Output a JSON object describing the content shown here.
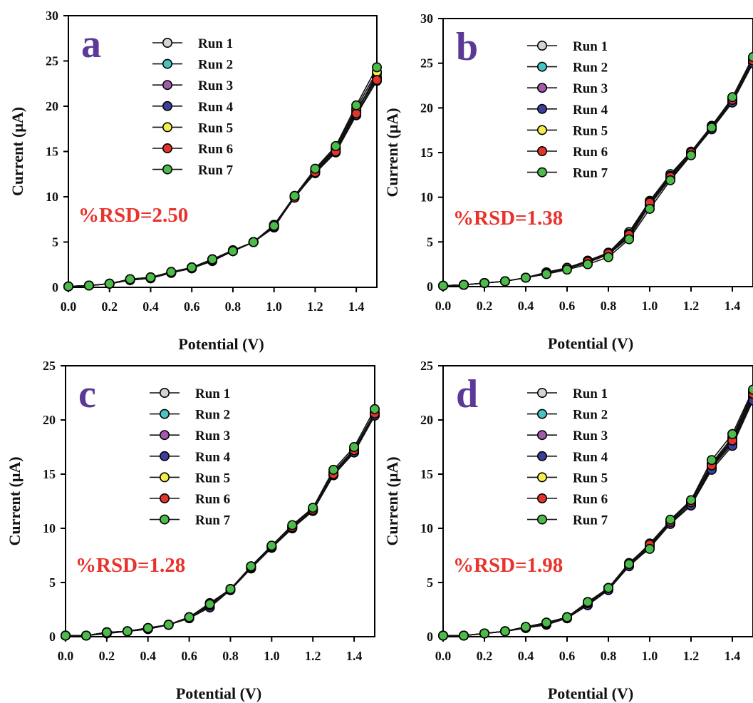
{
  "figure": {
    "colors": {
      "panel_letter": "#5b3a97",
      "rsd_text": "#e8322b",
      "axes": "#000000",
      "marker_edge": "#000000"
    },
    "series_styles": [
      {
        "name": "Run 1",
        "color": "#d4d4d4"
      },
      {
        "name": "Run 2",
        "color": "#49c4c4"
      },
      {
        "name": "Run 3",
        "color": "#a25ba9"
      },
      {
        "name": "Run 4",
        "color": "#3a3f9a"
      },
      {
        "name": "Run 5",
        "color": "#f4ee4c"
      },
      {
        "name": "Run 6",
        "color": "#e2332c"
      },
      {
        "name": "Run 7",
        "color": "#4dbb4a"
      }
    ]
  },
  "chart_data": [
    {
      "type": "line",
      "panel": "a",
      "annotation": "%RSD=2.50",
      "xlabel": "Potential (V)",
      "ylabel": "Current (μA)",
      "xlim": [
        0.0,
        1.5
      ],
      "ylim": [
        0,
        30
      ],
      "xticks": [
        "0.0",
        "0.2",
        "0.4",
        "0.6",
        "0.8",
        "1.0",
        "1.2",
        "1.4"
      ],
      "yticks": [
        "0",
        "5",
        "10",
        "15",
        "20",
        "25",
        "30"
      ],
      "legend": {
        "position": "top-left",
        "entries": [
          "Run 1",
          "Run 2",
          "Run 3",
          "Run 4",
          "Run 5",
          "Run 6",
          "Run 7"
        ]
      },
      "x": [
        0.0,
        0.1,
        0.2,
        0.3,
        0.4,
        0.5,
        0.6,
        0.7,
        0.8,
        0.9,
        1.0,
        1.1,
        1.2,
        1.3,
        1.4,
        1.5
      ],
      "series": [
        {
          "name": "Run 1",
          "values": [
            0.1,
            0.2,
            0.4,
            0.8,
            1.1,
            1.6,
            2.2,
            3.0,
            4.0,
            5.0,
            6.9,
            10.0,
            12.9,
            15.3,
            19.6,
            23.2
          ]
        },
        {
          "name": "Run 2",
          "values": [
            0.1,
            0.2,
            0.4,
            0.9,
            1.1,
            1.6,
            2.2,
            3.1,
            4.0,
            5.0,
            6.7,
            10.0,
            12.8,
            15.0,
            19.3,
            23.6
          ]
        },
        {
          "name": "Run 3",
          "values": [
            0.1,
            0.2,
            0.4,
            0.8,
            1.0,
            1.6,
            2.1,
            3.0,
            4.0,
            5.0,
            6.8,
            10.0,
            12.8,
            15.2,
            19.5,
            23.1
          ]
        },
        {
          "name": "Run 4",
          "values": [
            0.1,
            0.2,
            0.4,
            0.8,
            1.0,
            1.6,
            2.1,
            2.9,
            4.0,
            5.0,
            6.6,
            10.0,
            12.6,
            14.9,
            19.0,
            22.8
          ]
        },
        {
          "name": "Run 5",
          "values": [
            0.1,
            0.2,
            0.4,
            0.9,
            1.1,
            1.7,
            2.2,
            3.1,
            4.1,
            5.0,
            6.9,
            10.1,
            13.0,
            15.4,
            19.8,
            23.8
          ]
        },
        {
          "name": "Run 6",
          "values": [
            0.1,
            0.2,
            0.4,
            0.8,
            1.0,
            1.6,
            2.1,
            3.0,
            4.0,
            5.0,
            6.7,
            9.9,
            12.7,
            15.0,
            19.2,
            22.9
          ]
        },
        {
          "name": "Run 7",
          "values": [
            0.1,
            0.2,
            0.4,
            0.9,
            1.1,
            1.7,
            2.2,
            3.1,
            4.0,
            5.0,
            6.8,
            10.1,
            13.1,
            15.6,
            20.1,
            24.3
          ]
        }
      ]
    },
    {
      "type": "line",
      "panel": "b",
      "annotation": "%RSD=1.38",
      "xlabel": "Potential (V)",
      "ylabel": "Current (μA)",
      "xlim": [
        0.0,
        1.5
      ],
      "ylim": [
        0,
        30
      ],
      "xticks": [
        "0.0",
        "0.2",
        "0.4",
        "0.6",
        "0.8",
        "1.0",
        "1.2",
        "1.4"
      ],
      "yticks": [
        "0",
        "5",
        "10",
        "15",
        "20",
        "25",
        "30"
      ],
      "legend": {
        "position": "top-left",
        "entries": [
          "Run 1",
          "Run 2",
          "Run 3",
          "Run 4",
          "Run 5",
          "Run 6",
          "Run 7"
        ]
      },
      "x": [
        0.0,
        0.1,
        0.2,
        0.3,
        0.4,
        0.5,
        0.6,
        0.7,
        0.8,
        0.9,
        1.0,
        1.1,
        1.2,
        1.3,
        1.4,
        1.5
      ],
      "series": [
        {
          "name": "Run 1",
          "values": [
            0.1,
            0.2,
            0.4,
            0.6,
            1.0,
            1.5,
            2.1,
            2.8,
            3.7,
            5.7,
            9.3,
            12.3,
            15.0,
            17.8,
            20.8,
            25.2
          ]
        },
        {
          "name": "Run 2",
          "values": [
            0.1,
            0.2,
            0.4,
            0.6,
            1.0,
            1.6,
            2.1,
            2.9,
            3.8,
            6.1,
            9.6,
            12.6,
            15.1,
            17.9,
            21.0,
            25.4
          ]
        },
        {
          "name": "Run 3",
          "values": [
            0.1,
            0.2,
            0.4,
            0.6,
            1.0,
            1.5,
            2.0,
            2.8,
            3.6,
            5.6,
            9.2,
            12.2,
            14.9,
            17.7,
            20.7,
            25.1
          ]
        },
        {
          "name": "Run 4",
          "values": [
            0.1,
            0.2,
            0.4,
            0.6,
            1.0,
            1.5,
            2.0,
            2.7,
            3.6,
            5.5,
            9.1,
            12.1,
            14.8,
            17.6,
            20.6,
            25.0
          ]
        },
        {
          "name": "Run 5",
          "values": [
            0.1,
            0.2,
            0.4,
            0.6,
            1.0,
            1.6,
            2.1,
            2.9,
            3.8,
            5.9,
            9.5,
            12.4,
            15.1,
            18.0,
            21.1,
            25.5
          ]
        },
        {
          "name": "Run 6",
          "values": [
            0.1,
            0.2,
            0.4,
            0.6,
            1.0,
            1.5,
            2.1,
            2.8,
            3.7,
            5.8,
            9.4,
            12.3,
            15.0,
            17.9,
            20.9,
            25.3
          ]
        },
        {
          "name": "Run 7",
          "values": [
            0.1,
            0.2,
            0.4,
            0.6,
            1.0,
            1.4,
            1.9,
            2.5,
            3.3,
            5.3,
            8.7,
            11.9,
            14.7,
            17.8,
            21.2,
            25.7
          ]
        }
      ]
    },
    {
      "type": "line",
      "panel": "c",
      "annotation": "%RSD=1.28",
      "xlabel": "Potential (V)",
      "ylabel": "Current (μA)",
      "xlim": [
        0.0,
        1.5
      ],
      "ylim": [
        0,
        25
      ],
      "xticks": [
        "0.0",
        "0.2",
        "0.4",
        "0.6",
        "0.8",
        "1.0",
        "1.2",
        "1.4"
      ],
      "yticks": [
        "0",
        "5",
        "10",
        "15",
        "20",
        "25"
      ],
      "legend": {
        "position": "top-left",
        "entries": [
          "Run 1",
          "Run 2",
          "Run 3",
          "Run 4",
          "Run 5",
          "Run 6",
          "Run 7"
        ]
      },
      "x": [
        0.0,
        0.1,
        0.2,
        0.3,
        0.4,
        0.5,
        0.6,
        0.7,
        0.8,
        0.9,
        1.0,
        1.1,
        1.2,
        1.3,
        1.4,
        1.5
      ],
      "series": [
        {
          "name": "Run 1",
          "values": [
            0.1,
            0.1,
            0.4,
            0.5,
            0.8,
            1.1,
            1.8,
            2.9,
            4.4,
            6.4,
            8.3,
            10.1,
            11.7,
            15.0,
            17.1,
            20.5
          ]
        },
        {
          "name": "Run 2",
          "values": [
            0.1,
            0.1,
            0.4,
            0.5,
            0.8,
            1.1,
            1.8,
            3.0,
            4.4,
            6.4,
            8.3,
            10.2,
            11.8,
            15.1,
            17.2,
            20.6
          ]
        },
        {
          "name": "Run 3",
          "values": [
            0.1,
            0.1,
            0.3,
            0.5,
            0.7,
            1.1,
            1.7,
            2.8,
            4.3,
            6.3,
            8.2,
            10.0,
            11.6,
            14.9,
            17.0,
            20.4
          ]
        },
        {
          "name": "Run 4",
          "values": [
            0.1,
            0.1,
            0.3,
            0.5,
            0.7,
            1.1,
            1.7,
            2.7,
            4.3,
            6.3,
            8.2,
            10.0,
            11.6,
            14.9,
            17.0,
            20.4
          ]
        },
        {
          "name": "Run 5",
          "values": [
            0.1,
            0.1,
            0.4,
            0.5,
            0.8,
            1.1,
            1.8,
            3.1,
            4.4,
            6.5,
            8.4,
            10.2,
            11.8,
            15.2,
            17.3,
            20.7
          ]
        },
        {
          "name": "Run 6",
          "values": [
            0.1,
            0.1,
            0.4,
            0.5,
            0.8,
            1.1,
            1.8,
            2.9,
            4.4,
            6.4,
            8.3,
            10.1,
            11.7,
            15.0,
            17.2,
            20.6
          ]
        },
        {
          "name": "Run 7",
          "values": [
            0.1,
            0.1,
            0.4,
            0.5,
            0.8,
            1.1,
            1.8,
            3.0,
            4.4,
            6.5,
            8.4,
            10.3,
            11.9,
            15.4,
            17.5,
            21.0
          ]
        }
      ]
    },
    {
      "type": "line",
      "panel": "d",
      "annotation": "%RSD=1.98",
      "xlabel": "Potential (V)",
      "ylabel": "Current (μA)",
      "xlim": [
        0.0,
        1.5
      ],
      "ylim": [
        0,
        25
      ],
      "xticks": [
        "0.0",
        "0.2",
        "0.4",
        "0.6",
        "0.8",
        "1.0",
        "1.2",
        "1.4"
      ],
      "yticks": [
        "0",
        "5",
        "10",
        "15",
        "20",
        "25"
      ],
      "legend": {
        "position": "top-left",
        "entries": [
          "Run 1",
          "Run 2",
          "Run 3",
          "Run 4",
          "Run 5",
          "Run 6",
          "Run 7"
        ]
      },
      "x": [
        0.0,
        0.1,
        0.2,
        0.3,
        0.4,
        0.5,
        0.6,
        0.7,
        0.8,
        0.9,
        1.0,
        1.1,
        1.2,
        1.3,
        1.4,
        1.5
      ],
      "series": [
        {
          "name": "Run 1",
          "values": [
            0.1,
            0.1,
            0.3,
            0.5,
            0.8,
            1.2,
            1.7,
            3.0,
            4.4,
            6.6,
            8.3,
            10.5,
            12.2,
            15.6,
            17.8,
            22.0
          ]
        },
        {
          "name": "Run 2",
          "values": [
            0.1,
            0.1,
            0.3,
            0.5,
            0.9,
            1.2,
            1.8,
            3.1,
            4.5,
            6.7,
            8.6,
            10.7,
            12.4,
            15.9,
            18.2,
            22.5
          ]
        },
        {
          "name": "Run 3",
          "values": [
            0.1,
            0.1,
            0.3,
            0.5,
            0.8,
            1.2,
            1.7,
            3.0,
            4.4,
            6.6,
            8.4,
            10.5,
            12.2,
            15.7,
            18.0,
            22.2
          ]
        },
        {
          "name": "Run 4",
          "values": [
            0.1,
            0.1,
            0.3,
            0.5,
            0.8,
            1.1,
            1.7,
            2.9,
            4.3,
            6.5,
            8.2,
            10.4,
            12.1,
            15.4,
            17.6,
            21.8
          ]
        },
        {
          "name": "Run 5",
          "values": [
            0.1,
            0.1,
            0.3,
            0.5,
            0.9,
            1.3,
            1.8,
            3.2,
            4.5,
            6.8,
            8.5,
            10.7,
            12.5,
            16.0,
            18.4,
            22.6
          ]
        },
        {
          "name": "Run 6",
          "values": [
            0.1,
            0.1,
            0.3,
            0.5,
            0.9,
            1.2,
            1.8,
            3.1,
            4.5,
            6.7,
            8.5,
            10.6,
            12.4,
            15.8,
            18.1,
            22.4
          ]
        },
        {
          "name": "Run 7",
          "values": [
            0.1,
            0.1,
            0.3,
            0.5,
            0.9,
            1.3,
            1.8,
            3.2,
            4.5,
            6.7,
            8.1,
            10.8,
            12.6,
            16.3,
            18.7,
            22.8
          ]
        }
      ]
    }
  ]
}
